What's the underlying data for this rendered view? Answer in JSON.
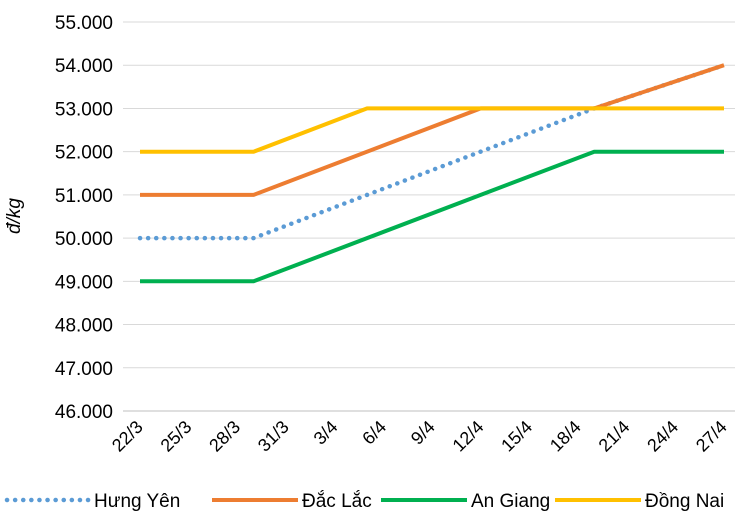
{
  "chart_data": {
    "type": "line",
    "title": "",
    "xlabel": "",
    "ylabel": "đ/kg",
    "x": [
      "22/3",
      "25/3",
      "28/3",
      "31/3",
      "3/4",
      "6/4",
      "9/4",
      "12/4",
      "15/4",
      "18/4",
      "21/4",
      "24/4",
      "27/4"
    ],
    "ylim": [
      46000,
      55000
    ],
    "y_ticks": [
      "46.000",
      "47.000",
      "48.000",
      "49.000",
      "50.000",
      "51.000",
      "52.000",
      "53.000",
      "54.000",
      "55.000"
    ],
    "grid": "horizontal",
    "legend_position": "bottom",
    "series": [
      {
        "name": "Hưng Yên",
        "color": "#5B9BD5",
        "style": "dotted",
        "points": [
          [
            "22/3",
            50000
          ],
          [
            "29/3",
            50000
          ],
          [
            "19/4",
            53000
          ],
          [
            "27/4",
            54000
          ]
        ]
      },
      {
        "name": "Đắc Lắc",
        "color": "#ED7D31",
        "style": "solid",
        "points": [
          [
            "22/3",
            51000
          ],
          [
            "29/3",
            51000
          ],
          [
            "12/4",
            53000
          ],
          [
            "19/4",
            53000
          ],
          [
            "27/4",
            54000
          ]
        ]
      },
      {
        "name": "An Giang",
        "color": "#00B050",
        "style": "solid",
        "points": [
          [
            "22/3",
            49000
          ],
          [
            "29/3",
            49000
          ],
          [
            "19/4",
            52000
          ],
          [
            "27/4",
            52000
          ]
        ]
      },
      {
        "name": "Đồng Nai",
        "color": "#FFC000",
        "style": "solid",
        "points": [
          [
            "22/3",
            52000
          ],
          [
            "29/3",
            52000
          ],
          [
            "5/4",
            53000
          ],
          [
            "27/4",
            53000
          ]
        ]
      }
    ]
  }
}
